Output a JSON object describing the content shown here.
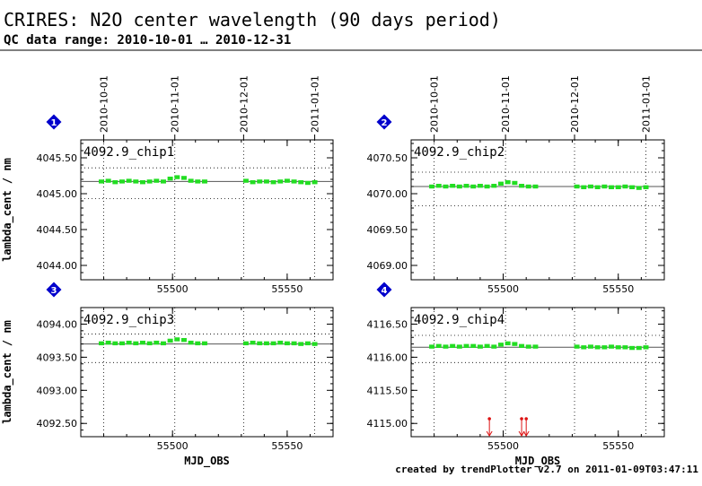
{
  "header": {
    "title": "CRIRES: N2O center wavelength (90 days period)",
    "subtitle": "QC data range: 2010-10-01 … 2010-12-31"
  },
  "footer": {
    "credit": "created by trendPlotter v2.7 on 2011-01-09T03:47:11"
  },
  "colors": {
    "data": "#22dd22",
    "outlier": "#dd1111",
    "badge": "#0000cc",
    "grid": "#000000"
  },
  "chart_data": [
    {
      "type": "scatter",
      "panel_number": "1",
      "title": "4092.9_chip1",
      "xlabel": "",
      "ylabel": "lambda_cent / nm",
      "xlim": [
        55460,
        55570
      ],
      "ylim": [
        4043.8,
        4045.75
      ],
      "yticks": [
        "4044.00",
        "4044.50",
        "4045.00",
        "4045.50"
      ],
      "xticks": [
        "55500",
        "55550"
      ],
      "date_ticks": [
        {
          "mjd": 55470,
          "label": "2010-10-01"
        },
        {
          "mjd": 55501,
          "label": "2010-11-01"
        },
        {
          "mjd": 55531,
          "label": "2010-12-01"
        },
        {
          "mjd": 55562,
          "label": "2011-01-01"
        }
      ],
      "reference_line": 4045.17,
      "limits": [
        4044.93,
        4045.36
      ],
      "series": [
        {
          "x": [
            55469,
            55472,
            55475,
            55478,
            55481,
            55484,
            55487,
            55490,
            55493,
            55496,
            55499,
            55502,
            55505,
            55508,
            55511,
            55514,
            55532,
            55535,
            55538,
            55541,
            55544,
            55547,
            55550,
            55553,
            55556,
            55559,
            55562
          ],
          "y": [
            4045.17,
            4045.18,
            4045.16,
            4045.17,
            4045.18,
            4045.17,
            4045.16,
            4045.17,
            4045.18,
            4045.17,
            4045.21,
            4045.23,
            4045.22,
            4045.18,
            4045.17,
            4045.17,
            4045.18,
            4045.16,
            4045.17,
            4045.17,
            4045.16,
            4045.17,
            4045.18,
            4045.17,
            4045.16,
            4045.15,
            4045.16
          ]
        }
      ],
      "outliers": []
    },
    {
      "type": "scatter",
      "panel_number": "2",
      "title": "4092.9_chip2",
      "xlabel": "",
      "ylabel": "",
      "xlim": [
        55460,
        55570
      ],
      "ylim": [
        4068.8,
        4070.75
      ],
      "yticks": [
        "4069.00",
        "4069.50",
        "4070.00",
        "4070.50"
      ],
      "xticks": [
        "55500",
        "55550"
      ],
      "date_ticks": [
        {
          "mjd": 55470,
          "label": "2010-10-01"
        },
        {
          "mjd": 55501,
          "label": "2010-11-01"
        },
        {
          "mjd": 55531,
          "label": "2010-12-01"
        },
        {
          "mjd": 55562,
          "label": "2011-01-01"
        }
      ],
      "reference_line": 4070.1,
      "limits": [
        4069.83,
        4070.3
      ],
      "series": [
        {
          "x": [
            55469,
            55472,
            55475,
            55478,
            55481,
            55484,
            55487,
            55490,
            55493,
            55496,
            55499,
            55502,
            55505,
            55508,
            55511,
            55514,
            55532,
            55535,
            55538,
            55541,
            55544,
            55547,
            55550,
            55553,
            55556,
            55559,
            55562
          ],
          "y": [
            4070.1,
            4070.11,
            4070.1,
            4070.11,
            4070.1,
            4070.11,
            4070.1,
            4070.11,
            4070.1,
            4070.11,
            4070.14,
            4070.16,
            4070.15,
            4070.11,
            4070.1,
            4070.1,
            4070.1,
            4070.09,
            4070.1,
            4070.09,
            4070.1,
            4070.09,
            4070.09,
            4070.1,
            4070.09,
            4070.08,
            4070.09
          ]
        }
      ],
      "outliers": []
    },
    {
      "type": "scatter",
      "panel_number": "3",
      "title": "4092.9_chip3",
      "xlabel": "MJD_OBS",
      "ylabel": "lambda_cent / nm",
      "xlim": [
        55460,
        55570
      ],
      "ylim": [
        4092.3,
        4094.25
      ],
      "yticks": [
        "4092.50",
        "4093.00",
        "4093.50",
        "4094.00"
      ],
      "xticks": [
        "55500",
        "55550"
      ],
      "date_ticks": [],
      "reference_line": 4093.7,
      "limits": [
        4093.42,
        4093.85
      ],
      "series": [
        {
          "x": [
            55469,
            55472,
            55475,
            55478,
            55481,
            55484,
            55487,
            55490,
            55493,
            55496,
            55499,
            55502,
            55505,
            55508,
            55511,
            55514,
            55532,
            55535,
            55538,
            55541,
            55544,
            55547,
            55550,
            55553,
            55556,
            55559,
            55562
          ],
          "y": [
            4093.71,
            4093.72,
            4093.71,
            4093.71,
            4093.72,
            4093.71,
            4093.72,
            4093.71,
            4093.72,
            4093.71,
            4093.75,
            4093.77,
            4093.76,
            4093.72,
            4093.71,
            4093.71,
            4093.71,
            4093.72,
            4093.71,
            4093.71,
            4093.71,
            4093.72,
            4093.71,
            4093.71,
            4093.7,
            4093.71,
            4093.7
          ]
        }
      ],
      "outliers": []
    },
    {
      "type": "scatter",
      "panel_number": "4",
      "title": "4092.9_chip4",
      "xlabel": "MJD_OBS",
      "ylabel": "",
      "xlim": [
        55460,
        55570
      ],
      "ylim": [
        4114.8,
        4116.75
      ],
      "yticks": [
        "4115.00",
        "4115.50",
        "4116.00",
        "4116.50"
      ],
      "xticks": [
        "55500",
        "55550"
      ],
      "date_ticks": [],
      "reference_line": 4116.15,
      "limits": [
        4115.92,
        4116.33
      ],
      "series": [
        {
          "x": [
            55469,
            55472,
            55475,
            55478,
            55481,
            55484,
            55487,
            55490,
            55493,
            55496,
            55499,
            55502,
            55505,
            55508,
            55511,
            55514,
            55532,
            55535,
            55538,
            55541,
            55544,
            55547,
            55550,
            55553,
            55556,
            55559,
            55562
          ],
          "y": [
            4116.16,
            4116.17,
            4116.16,
            4116.17,
            4116.16,
            4116.17,
            4116.17,
            4116.16,
            4116.17,
            4116.16,
            4116.19,
            4116.21,
            4116.2,
            4116.17,
            4116.16,
            4116.16,
            4116.16,
            4116.15,
            4116.16,
            4116.15,
            4116.15,
            4116.16,
            4116.15,
            4116.15,
            4116.14,
            4116.14,
            4116.15
          ]
        }
      ],
      "outliers": [
        55494,
        55508,
        55510
      ]
    }
  ]
}
